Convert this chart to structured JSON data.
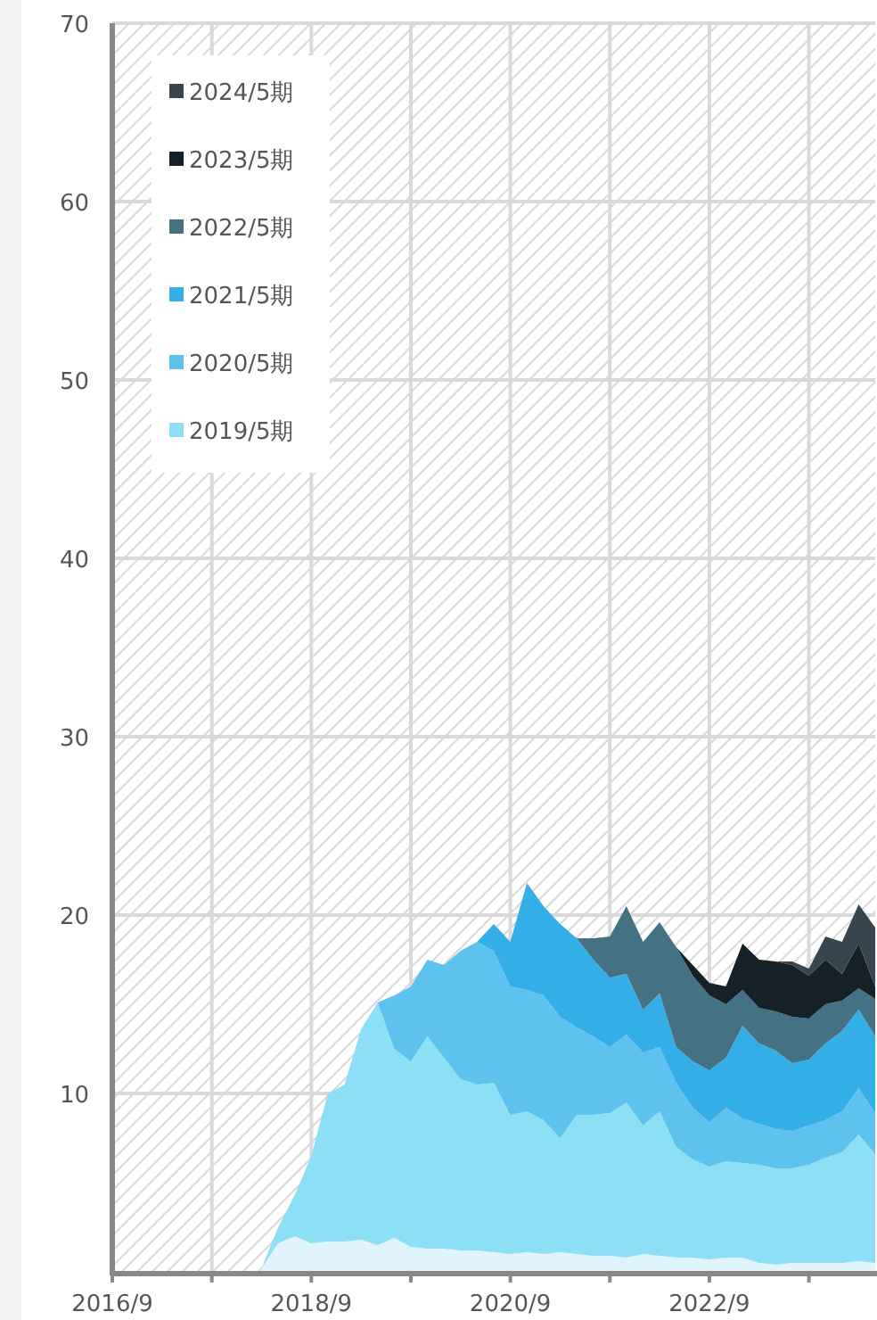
{
  "chart_data": {
    "type": "area",
    "stacked": true,
    "grid": true,
    "legend": "top left",
    "x": [
      "2018-03",
      "2018-05",
      "2018-07",
      "2018-09",
      "2018-11",
      "2019-01",
      "2019-03",
      "2019-05",
      "2019-07",
      "2019-09",
      "2019-11",
      "2020-01",
      "2020-03",
      "2020-05",
      "2020-07",
      "2020-09",
      "2020-11",
      "2021-01",
      "2021-03",
      "2021-05",
      "2021-07",
      "2021-09",
      "2021-11",
      "2022-01",
      "2022-03",
      "2022-05",
      "2022-07",
      "2022-09",
      "2022-11",
      "2023-01",
      "2023-03",
      "2023-05",
      "2023-07",
      "2023-09",
      "2023-11",
      "2024-01",
      "2024-03",
      "2024-05"
    ],
    "xlim": [
      "2016-09",
      "2024-05"
    ],
    "xticks": [
      {
        "value": "2016-09",
        "label": "2016/9"
      },
      {
        "value": "2017-09",
        "label": null
      },
      {
        "value": "2018-09",
        "label": "2018/9"
      },
      {
        "value": "2019-09",
        "label": null
      },
      {
        "value": "2020-09",
        "label": "2020/9"
      },
      {
        "value": "2021-09",
        "label": null
      },
      {
        "value": "2022-09",
        "label": "2022/9"
      },
      {
        "value": "2023-09",
        "label": null
      }
    ],
    "ylim": [
      0,
      70
    ],
    "yticks": [
      10,
      20,
      30,
      40,
      50,
      60,
      70
    ],
    "series": [
      {
        "color": "#dff4fc",
        "values": [
          0.2,
          1.6,
          2.0,
          1.6,
          1.7,
          1.7,
          1.8,
          1.5,
          1.9,
          1.4,
          1.3,
          1.3,
          1.2,
          1.2,
          1.1,
          1.0,
          1.1,
          1.0,
          1.1,
          1.0,
          0.9,
          0.9,
          0.8,
          1.0,
          0.9,
          0.8,
          0.8,
          0.7,
          0.8,
          0.8,
          0.5,
          0.4,
          0.5,
          0.5,
          0.5,
          0.5,
          0.6,
          0.5
        ]
      },
      {
        "name": "2019/5期",
        "color": "#8ddff5",
        "values": [
          0.0,
          0.9,
          2.3,
          4.9,
          8.3,
          8.8,
          11.8,
          13.6,
          10.6,
          10.4,
          11.9,
          10.7,
          9.6,
          9.3,
          9.5,
          7.8,
          7.9,
          7.5,
          6.4,
          7.8,
          7.9,
          8.0,
          8.7,
          7.2,
          8.1,
          6.2,
          5.5,
          5.2,
          5.4,
          5.3,
          5.5,
          5.4,
          5.3,
          5.5,
          5.9,
          6.2,
          7.1,
          6.1
        ]
      },
      {
        "name": "2020/5期",
        "color": "#5dc3ee",
        "values": [
          null,
          null,
          null,
          null,
          null,
          null,
          null,
          0,
          3.0,
          4.2,
          4.3,
          5.2,
          7.2,
          8.0,
          7.4,
          7.2,
          6.8,
          7.0,
          6.8,
          4.9,
          4.4,
          3.7,
          3.8,
          4.1,
          3.6,
          3.6,
          2.9,
          2.5,
          3.0,
          2.5,
          2.3,
          2.2,
          2.1,
          2.2,
          2.1,
          2.3,
          2.6,
          2.3
        ]
      },
      {
        "name": "2021/5期",
        "color": "#33aee6",
        "values": [
          null,
          null,
          null,
          null,
          null,
          null,
          null,
          null,
          null,
          null,
          null,
          null,
          null,
          0,
          1.5,
          2.5,
          6.0,
          5.0,
          5.2,
          5.0,
          4.3,
          3.9,
          3.4,
          2.4,
          3.0,
          2.0,
          2.6,
          2.9,
          2.8,
          5.2,
          4.5,
          4.4,
          3.8,
          3.7,
          4.3,
          4.5,
          4.4,
          4.3
        ]
      },
      {
        "name": "2022/5期",
        "color": "#457283",
        "values": [
          null,
          null,
          null,
          null,
          null,
          null,
          null,
          null,
          null,
          null,
          null,
          null,
          null,
          null,
          null,
          null,
          null,
          null,
          null,
          0,
          1.2,
          2.3,
          3.8,
          3.8,
          4.0,
          5.6,
          4.8,
          4.2,
          3.0,
          2.0,
          2.0,
          2.2,
          2.6,
          2.3,
          2.2,
          1.7,
          1.2,
          2.1
        ]
      },
      {
        "name": "2023/5期",
        "color": "#152027",
        "values": [
          null,
          null,
          null,
          null,
          null,
          null,
          null,
          null,
          null,
          null,
          null,
          null,
          null,
          null,
          null,
          null,
          null,
          null,
          null,
          null,
          null,
          null,
          null,
          null,
          null,
          0,
          0.6,
          0.7,
          1.0,
          2.6,
          2.7,
          2.8,
          2.9,
          2.4,
          2.5,
          1.5,
          2.5,
          0.7
        ]
      },
      {
        "name": "2024/5期",
        "color": "#37454f",
        "values": [
          null,
          null,
          null,
          null,
          null,
          null,
          null,
          null,
          null,
          null,
          null,
          null,
          null,
          null,
          null,
          null,
          null,
          null,
          null,
          null,
          null,
          null,
          null,
          null,
          null,
          null,
          null,
          null,
          null,
          null,
          null,
          0,
          0.2,
          0.4,
          1.3,
          1.8,
          2.2,
          3.3
        ]
      }
    ]
  }
}
